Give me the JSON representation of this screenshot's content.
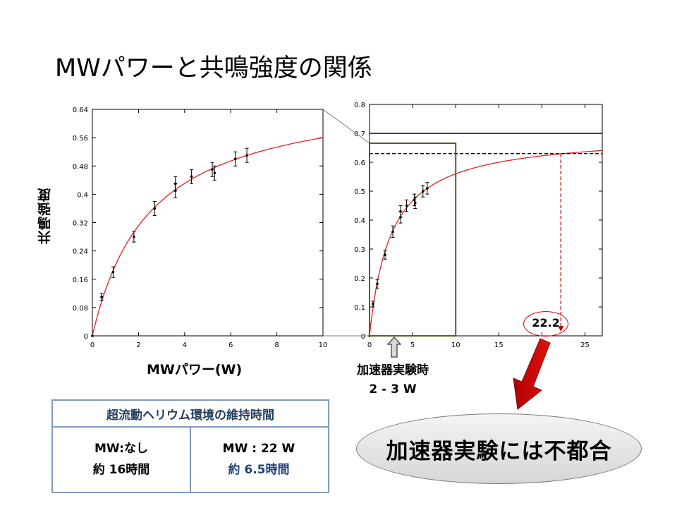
{
  "slide": {
    "title": "MWパワーと共鳴強度の関係",
    "y_axis_label": "共鳴強度",
    "x_axis_label": "MWパワー(W)"
  },
  "chart_data": [
    {
      "type": "scatter",
      "title": "",
      "xlabel": "MWパワー(W)",
      "ylabel": "共鳴強度",
      "xlim": [
        0,
        10
      ],
      "ylim": [
        0,
        0.64
      ],
      "xticks": [
        "0",
        "2",
        "4",
        "6",
        "8",
        "10"
      ],
      "yticks": [
        "0",
        "0.08",
        "0.16",
        "0.24",
        "0.32",
        "0.4",
        "0.48",
        "0.56",
        "0.64"
      ],
      "series": [
        {
          "kind": "points-with-error-bars",
          "x": [
            0,
            0.4,
            0.9,
            1.8,
            2.7,
            3.6,
            3.6,
            4.3,
            5.2,
            5.3,
            6.2,
            6.7
          ],
          "y": [
            0,
            0.11,
            0.18,
            0.28,
            0.36,
            0.43,
            0.41,
            0.45,
            0.47,
            0.46,
            0.5,
            0.51
          ],
          "error": [
            0,
            0.01,
            0.015,
            0.015,
            0.02,
            0.02,
            0.02,
            0.02,
            0.02,
            0.02,
            0.02,
            0.02
          ]
        },
        {
          "kind": "fit-curve",
          "color": "#e02020",
          "formula": "0.7*x/(x+2.5)"
        }
      ]
    },
    {
      "type": "scatter",
      "title": "",
      "xlim": [
        0,
        27
      ],
      "ylim": [
        0,
        0.8
      ],
      "xticks": [
        "0",
        "5",
        "10",
        "15",
        "20",
        "25"
      ],
      "yticks": [
        "0",
        "0.1",
        "0.2",
        "0.3",
        "0.4",
        "0.5",
        "0.6",
        "0.7",
        "0.8"
      ],
      "series": [
        {
          "kind": "points-with-error-bars",
          "x": [
            0,
            0.4,
            0.9,
            1.8,
            2.7,
            3.6,
            3.6,
            4.3,
            5.2,
            5.3,
            6.2,
            6.7
          ],
          "y": [
            0,
            0.11,
            0.18,
            0.28,
            0.36,
            0.43,
            0.41,
            0.45,
            0.47,
            0.46,
            0.5,
            0.51
          ],
          "error": [
            0,
            0.01,
            0.015,
            0.015,
            0.02,
            0.02,
            0.02,
            0.02,
            0.02,
            0.02,
            0.02,
            0.02
          ]
        },
        {
          "kind": "fit-curve",
          "color": "#e02020",
          "formula": "0.7*x/(x+2.5)"
        }
      ],
      "reference_lines": [
        {
          "y": 0.7,
          "style": "solid",
          "color": "#000000"
        },
        {
          "y": 0.63,
          "style": "dashed",
          "color": "#000000"
        },
        {
          "x": 22.2,
          "style": "dashed",
          "color": "#c00000"
        }
      ],
      "highlight_range_x": [
        0,
        10
      ],
      "annotation_value": "22.2"
    }
  ],
  "note": {
    "line1": "加速器実験時",
    "line2": "2 - 3 W"
  },
  "conclusion": "加速器実験には不都合",
  "table": {
    "header": "超流動ヘリウム環境の維持時間",
    "left_line1": "MW:なし",
    "left_line2": "約 16時間",
    "right_line1": "MW : 22 W",
    "right_line2": "約 6.5時間"
  },
  "colors": {
    "fit_curve": "#e02020",
    "highlight_box": "#4f6228",
    "table_border": "#7f9bbf",
    "table_header_text": "#243f60",
    "arrow_fill": "#c00000"
  }
}
